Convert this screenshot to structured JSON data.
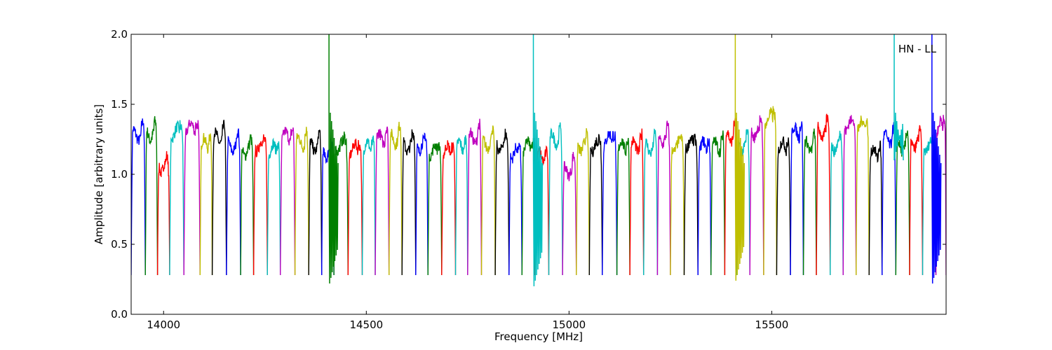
{
  "chart_data": {
    "type": "line",
    "title": "",
    "xlabel": "Frequency [MHz]",
    "ylabel": "Amplitude [arbitrary units]",
    "xlim": [
      13920,
      15930
    ],
    "ylim": [
      0,
      2.0
    ],
    "x_ticks": [
      14000,
      14500,
      15000,
      15500
    ],
    "x_tick_labels": [
      "14000",
      "14500",
      "15000",
      "15500"
    ],
    "y_ticks": [
      0.0,
      0.5,
      1.0,
      1.5,
      2.0
    ],
    "y_tick_labels": [
      "0.0",
      "0.5",
      "1.0",
      "1.5",
      "2.0"
    ],
    "grid": false,
    "legend": "none",
    "annotation": {
      "text": "HN - LL",
      "position": "top-right"
    },
    "color_cycle": [
      "#0000ff",
      "#007f00",
      "#ff0000",
      "#00bfbf",
      "#bf00bf",
      "#bfbf00",
      "#000000"
    ],
    "band_envelope_color": "#aaaaaa",
    "subband_edges_mhz": [
      13920,
      13955,
      13985,
      14015,
      14050,
      14090,
      14120,
      14155,
      14190,
      14222,
      14256,
      14288,
      14324,
      14358,
      14390,
      14420,
      14455,
      14490,
      14522,
      14556,
      14588,
      14622,
      14652,
      14686,
      14720,
      14750,
      14784,
      14818,
      14852,
      14884,
      14916,
      14950,
      14984,
      15018,
      15050,
      15082,
      15118,
      15150,
      15184,
      15218,
      15250,
      15284,
      15318,
      15350,
      15384,
      15414,
      15446,
      15480,
      15512,
      15546,
      15578,
      15610,
      15644,
      15676,
      15708,
      15740,
      15772,
      15806,
      15840,
      15872,
      15905,
      15930
    ],
    "subband_levels": [
      1.28,
      1.28,
      1.05,
      1.3,
      1.33,
      1.22,
      1.26,
      1.2,
      1.17,
      1.2,
      1.18,
      1.27,
      1.23,
      1.2,
      1.15,
      1.2,
      1.18,
      1.2,
      1.26,
      1.25,
      1.2,
      1.2,
      1.17,
      1.17,
      1.2,
      1.26,
      1.22,
      1.2,
      1.15,
      1.2,
      1.12,
      1.25,
      1.03,
      1.2,
      1.2,
      1.25,
      1.2,
      1.2,
      1.19,
      1.25,
      1.2,
      1.22,
      1.2,
      1.2,
      1.27,
      1.2,
      1.3,
      1.4,
      1.2,
      1.3,
      1.2,
      1.3,
      1.2,
      1.35,
      1.35,
      1.15,
      1.25,
      1.2,
      1.22,
      1.2,
      1.35
    ],
    "subband_min": 0.28,
    "spikes": [
      {
        "x": 14408,
        "ymax": 2.0,
        "ymin": 0.2,
        "color": "#007f00"
      },
      {
        "x": 14912,
        "ymax": 2.0,
        "ymin": 0.18,
        "color": "#00bfbf"
      },
      {
        "x": 15410,
        "ymax": 2.0,
        "ymin": 0.22,
        "color": "#bfbf00"
      },
      {
        "x": 15802,
        "ymax": 2.0,
        "ymin": 1.1,
        "color": "#00bfbf"
      },
      {
        "x": 15895,
        "ymax": 2.0,
        "ymin": 0.2,
        "color": "#0000ff"
      }
    ]
  }
}
